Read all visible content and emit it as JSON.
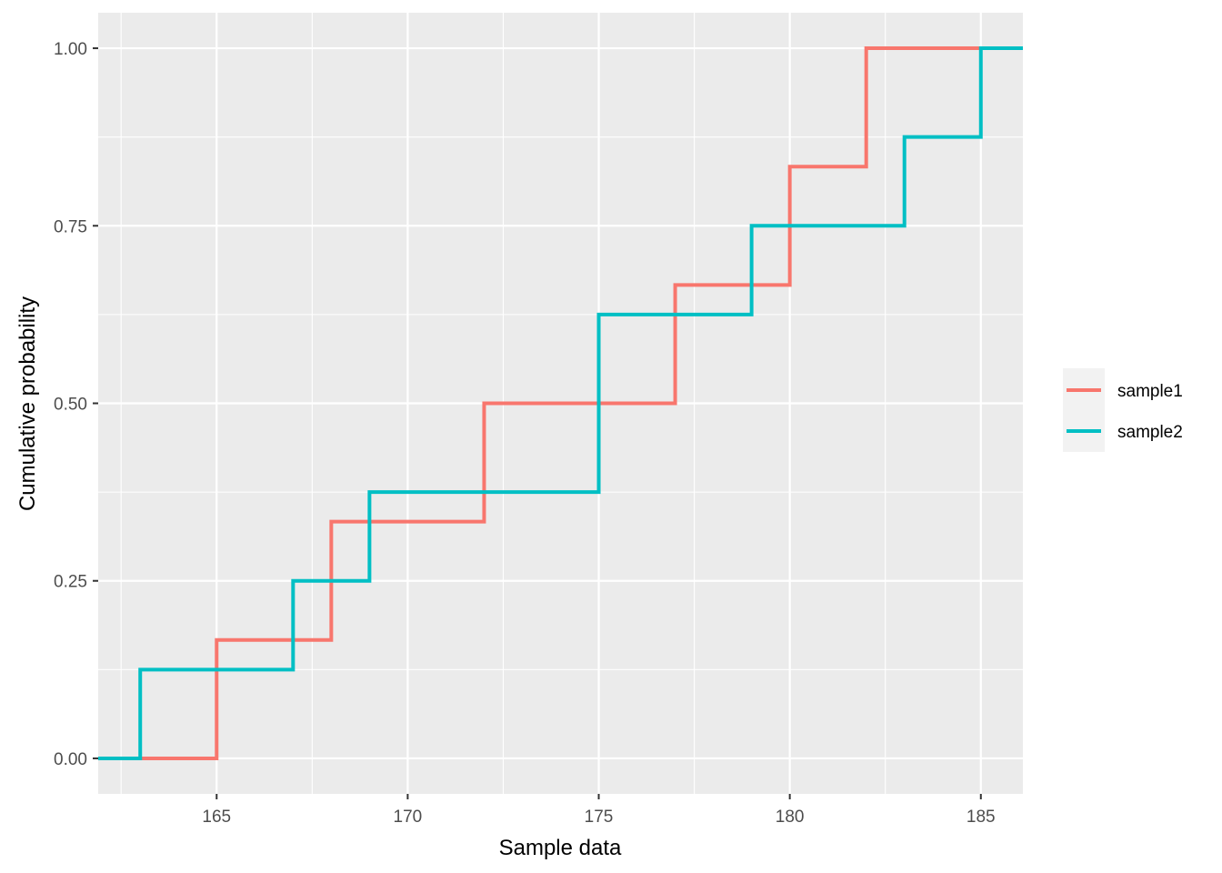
{
  "chart_data": {
    "type": "line",
    "step": true,
    "xlabel": "Sample data",
    "ylabel": "Cumulative probability",
    "xlim": [
      161.9,
      186.1
    ],
    "ylim": [
      -0.05,
      1.05
    ],
    "x_ticks": [
      165,
      170,
      175,
      180,
      185
    ],
    "x_tick_labels": [
      "165",
      "170",
      "175",
      "180",
      "185"
    ],
    "y_ticks": [
      0,
      0.25,
      0.5,
      0.75,
      1
    ],
    "y_tick_labels": [
      "0.00",
      "0.25",
      "0.50",
      "0.75",
      "1.00"
    ],
    "grid": true,
    "background": "#ebebeb",
    "legend_position": "right",
    "series": [
      {
        "name": "sample1",
        "color": "#f8766d",
        "x": [
          165,
          168,
          172,
          177,
          180,
          182
        ],
        "y": [
          0.1667,
          0.3333,
          0.5,
          0.6667,
          0.8333,
          1.0
        ]
      },
      {
        "name": "sample2",
        "color": "#00bfc4",
        "x": [
          163,
          167,
          169,
          175,
          179,
          183,
          185
        ],
        "y": [
          0.125,
          0.25,
          0.375,
          0.625,
          0.75,
          0.875,
          1.0
        ]
      }
    ]
  }
}
